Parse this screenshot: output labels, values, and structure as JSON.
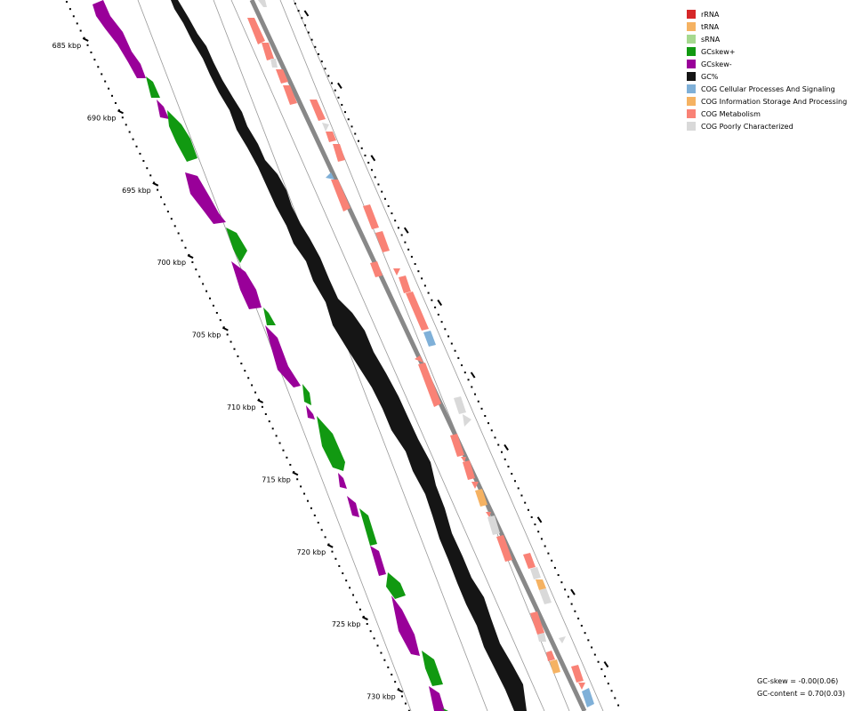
{
  "legend": [
    {
      "label": "rRNA",
      "color": "#d62728"
    },
    {
      "label": "tRNA",
      "color": "#f5b262"
    },
    {
      "label": "sRNA",
      "color": "#a6d98f"
    },
    {
      "label": "GCskew+",
      "color": "#119911"
    },
    {
      "label": "GCskew-",
      "color": "#990099"
    },
    {
      "label": "GC%",
      "color": "#151515"
    },
    {
      "label": "COG Cellular Processes And Signaling",
      "color": "#7fb0d8"
    },
    {
      "label": "COG Information Storage And Processing",
      "color": "#f5b262"
    },
    {
      "label": "COG Metabolism",
      "color": "#f98276"
    },
    {
      "label": "COG Poorly Characterized",
      "color": "#d9d9d9"
    }
  ],
  "axis": {
    "unit": "kbp",
    "labels": [
      "685 kbp",
      "690 kbp",
      "695 kbp",
      "700 kbp",
      "705 kbp",
      "710 kbp",
      "715 kbp",
      "720 kbp",
      "725 kbp",
      "730 kbp"
    ]
  },
  "stats": {
    "gc_skew": "GC-skew = -0.00(0.06)",
    "gc_content": "GC-content = 0.70(0.03)"
  },
  "colors": {
    "skew_pos": "#119911",
    "skew_neg": "#990099",
    "gc": "#151515",
    "backbone": "#888888",
    "ring": "#999999"
  }
}
